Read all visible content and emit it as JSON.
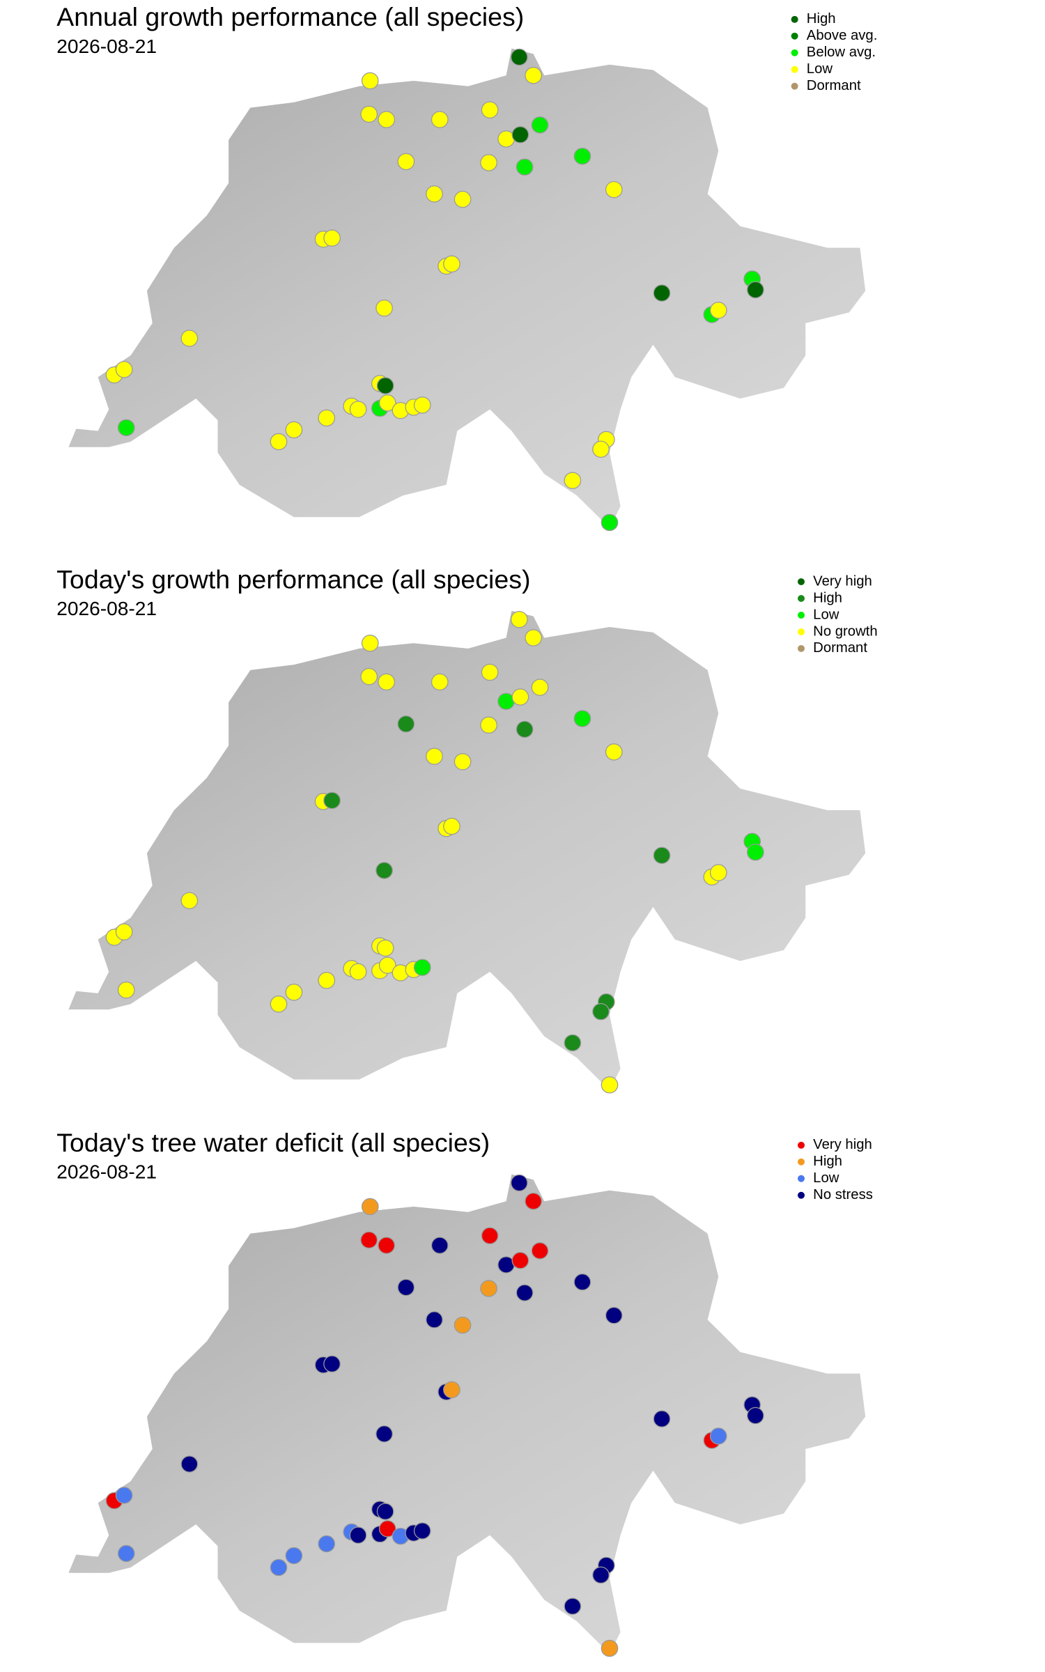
{
  "maps": [
    {
      "title": "Annual growth performance (all species)",
      "date": "2026-08-21",
      "legend": [
        {
          "label": "High",
          "color": "#006400"
        },
        {
          "label": "Above avg.",
          "color": "#008000"
        },
        {
          "label": "Below avg.",
          "color": "#00ee00"
        },
        {
          "label": "Low",
          "color": "#ffff00"
        },
        {
          "label": "Dormant",
          "color": "#b0966a"
        }
      ],
      "sites": [
        "High",
        "Low",
        "Low",
        "Low",
        "Low",
        "Low",
        "Low",
        "Low",
        "High",
        "Below avg.",
        "Low",
        "Low",
        "Below avg.",
        "Below avg.",
        "Low",
        "Low",
        "Low",
        "Low",
        "Low",
        "Low",
        "Low",
        "Low",
        "Low",
        "Low",
        "Low",
        "Below avg.",
        "Low",
        "High",
        "High",
        "Below avg.",
        "High",
        "Below avg.",
        "Low",
        "Low",
        "Low",
        "Below avg.",
        "Low",
        "Low",
        "Low",
        "Low",
        "Low",
        "Low",
        "Low",
        "Low",
        "Low",
        "Low",
        "Below avg."
      ]
    },
    {
      "title": "Today's growth performance (all species)",
      "date": "2026-08-21",
      "legend": [
        {
          "label": "Very high",
          "color": "#006400"
        },
        {
          "label": "High",
          "color": "#1a8a1a"
        },
        {
          "label": "Low",
          "color": "#00ee00"
        },
        {
          "label": "No growth",
          "color": "#ffff00"
        },
        {
          "label": "Dormant",
          "color": "#b0966a"
        }
      ],
      "sites": [
        "No growth",
        "No growth",
        "No growth",
        "No growth",
        "No growth",
        "No growth",
        "No growth",
        "Low",
        "No growth",
        "No growth",
        "High",
        "No growth",
        "High",
        "Low",
        "No growth",
        "No growth",
        "No growth",
        "No growth",
        "High",
        "No growth",
        "No growth",
        "High",
        "No growth",
        "No growth",
        "No growth",
        "No growth",
        "No growth",
        "No growth",
        "High",
        "Low",
        "Low",
        "No growth",
        "No growth",
        "No growth",
        "No growth",
        "No growth",
        "No growth",
        "No growth",
        "No growth",
        "Low",
        "No growth",
        "No growth",
        "No growth",
        "High",
        "High",
        "High",
        "No growth"
      ]
    },
    {
      "title": "Today's tree water deficit (all species)",
      "date": "2026-08-21",
      "legend": [
        {
          "label": "Very high",
          "color": "#ee0000"
        },
        {
          "label": "High",
          "color": "#f39a1e"
        },
        {
          "label": "Low",
          "color": "#4a78ee"
        },
        {
          "label": "No stress",
          "color": "#000080"
        }
      ],
      "sites": [
        "No stress",
        "Very high",
        "High",
        "Very high",
        "Very high",
        "No stress",
        "Very high",
        "No stress",
        "Very high",
        "Very high",
        "No stress",
        "High",
        "No stress",
        "No stress",
        "No stress",
        "No stress",
        "High",
        "No stress",
        "No stress",
        "No stress",
        "High",
        "No stress",
        "No stress",
        "Very high",
        "Low",
        "Low",
        "No stress",
        "No stress",
        "No stress",
        "No stress",
        "No stress",
        "Very high",
        "Low",
        "Low",
        "No stress",
        "No stress",
        "Very high",
        "Low",
        "No stress",
        "No stress",
        "Low",
        "Low",
        "Low",
        "No stress",
        "No stress",
        "No stress",
        "High"
      ]
    }
  ]
}
